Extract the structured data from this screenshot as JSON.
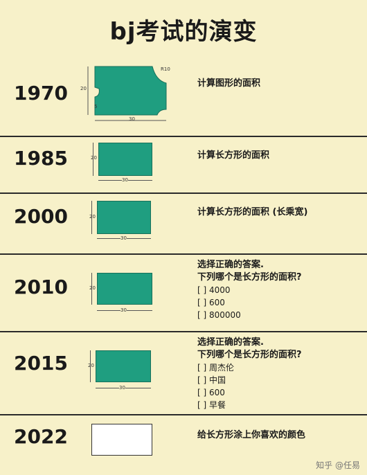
{
  "title": "bj考试的演变",
  "rows": [
    {
      "year": "1970",
      "task": "计算图形的面积",
      "dims": {
        "w": "30",
        "h": "20",
        "corner": "R10",
        "notch": "5"
      }
    },
    {
      "year": "1985",
      "task": "计算长方形的面积",
      "dims": {
        "w": "30",
        "h": "20"
      }
    },
    {
      "year": "2000",
      "task": "计算长方形的面积 (长乘宽)",
      "dims": {
        "w": "30",
        "h": "20"
      }
    },
    {
      "year": "2010",
      "task_line1": "选择正确的答案.",
      "task_line2": "下列哪个是长方形的面积?",
      "dims": {
        "w": "30",
        "h": "20"
      },
      "options": [
        "[  ] 4000",
        "[  ] 600",
        "[  ] 800000"
      ]
    },
    {
      "year": "2015",
      "task_line1": "选择正确的答案.",
      "task_line2": "下列哪个是长方形的面积?",
      "dims": {
        "w": "30",
        "h": "20"
      },
      "options": [
        "[  ] 周杰伦",
        "[  ] 中国",
        "[  ] 600",
        "[  ] 早餐"
      ]
    },
    {
      "year": "2022",
      "task": "给长方形涂上你喜欢的颜色"
    }
  ],
  "watermark": "知乎 @任易"
}
